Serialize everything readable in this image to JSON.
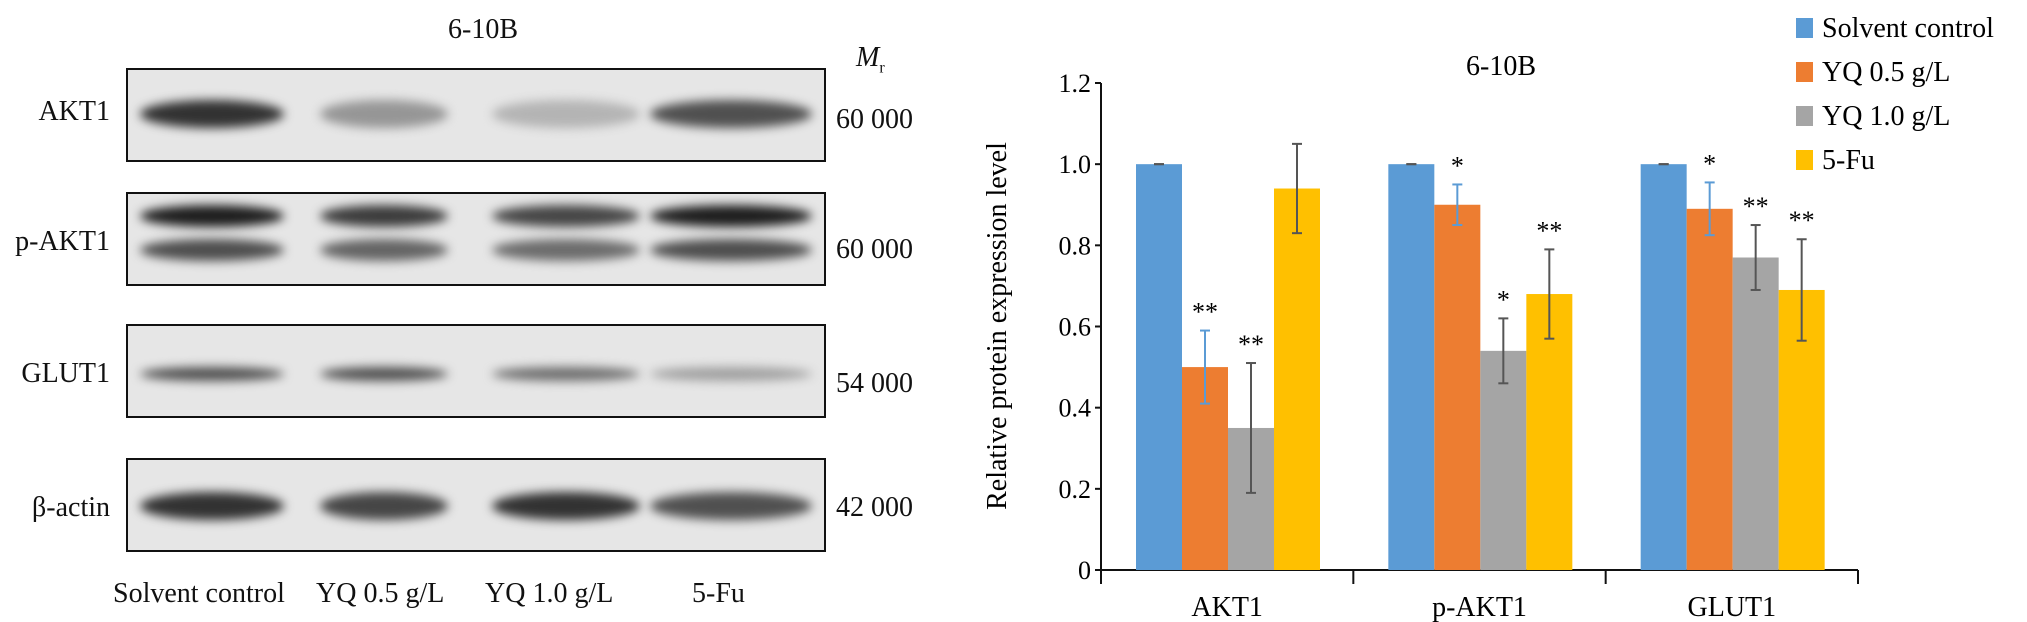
{
  "blot": {
    "title": "6-10B",
    "mr_label": "M",
    "mr_sub": "r",
    "rows": [
      {
        "label": "AKT1",
        "mw": "60 000",
        "intensity": [
          0.85,
          0.35,
          0.2,
          0.7
        ]
      },
      {
        "label": "p-AKT1",
        "mw": "60 000",
        "intensity": [
          0.95,
          0.8,
          0.75,
          0.95
        ]
      },
      {
        "label": "GLUT1",
        "mw": "54 000",
        "intensity": [
          0.7,
          0.7,
          0.55,
          0.3
        ]
      },
      {
        "label": "β-actin",
        "mw": "42 000",
        "intensity": [
          0.85,
          0.75,
          0.85,
          0.7
        ]
      }
    ],
    "lanes": [
      "Solvent control",
      "YQ 0.5 g/L",
      "YQ 1.0 g/L",
      "5-Fu"
    ]
  },
  "chart_data": {
    "type": "bar",
    "title": "6-10B",
    "ylabel": "Relative protein expression level",
    "xlabel": "",
    "categories": [
      "AKT1",
      "p-AKT1",
      "GLUT1"
    ],
    "ylim": [
      0,
      1.2
    ],
    "yticks": [
      "0",
      "0.2",
      "0.4",
      "0.6",
      "0.8",
      "1.0",
      "1.2"
    ],
    "grid": false,
    "legend_position": "top-right",
    "series": [
      {
        "name": "Solvent control",
        "color": "#5b9bd5",
        "values": [
          1.0,
          1.0,
          1.0
        ],
        "errors": [
          0,
          0,
          0
        ],
        "sig": [
          "",
          "",
          ""
        ]
      },
      {
        "name": "YQ 0.5 g/L",
        "color": "#ed7d31",
        "values": [
          0.5,
          0.9,
          0.89
        ],
        "errors": [
          0.09,
          0.05,
          0.065
        ],
        "sig": [
          "**",
          "*",
          "*"
        ]
      },
      {
        "name": "YQ 1.0 g/L",
        "color": "#a5a5a5",
        "values": [
          0.35,
          0.54,
          0.77
        ],
        "errors": [
          0.16,
          0.08,
          0.08
        ],
        "sig": [
          "**",
          "*",
          "**"
        ]
      },
      {
        "name": "5-Fu",
        "color": "#ffc000",
        "values": [
          0.94,
          0.68,
          0.69
        ],
        "errors": [
          0.11,
          0.11,
          0.125
        ],
        "sig": [
          "",
          "**",
          "**"
        ]
      }
    ]
  }
}
